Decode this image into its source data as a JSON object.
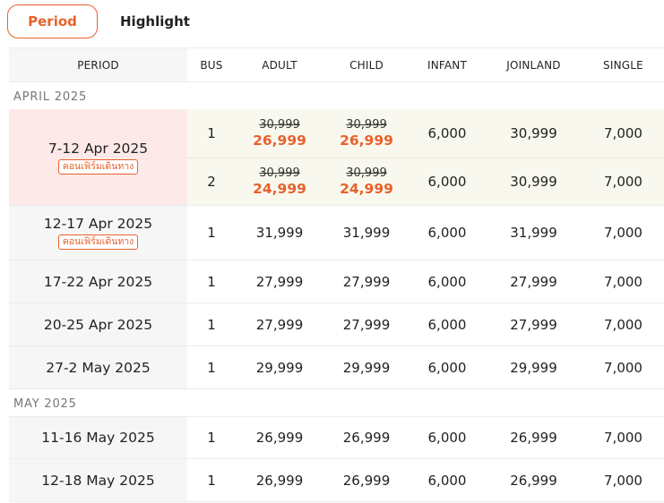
{
  "tabs": {
    "active": "Period",
    "inactive": "Highlight"
  },
  "columns": {
    "period": "PERIOD",
    "bus": "BUS",
    "adult": "ADULT",
    "child": "CHILD",
    "infant": "INFANT",
    "joinland": "JOINLAND",
    "single": "SINGLE"
  },
  "months": [
    {
      "label": "APRIL 2025",
      "rows": [
        {
          "period": "7-12 Apr 2025",
          "badge": "คอนเฟิร์มเดินทาง",
          "buses": [
            {
              "bus": "1",
              "adult_old": "30,999",
              "adult": "26,999",
              "child_old": "30,999",
              "child": "26,999",
              "infant": "6,000",
              "joinland": "30,999",
              "single": "7,000"
            },
            {
              "bus": "2",
              "adult_old": "30,999",
              "adult": "24,999",
              "child_old": "30,999",
              "child": "24,999",
              "infant": "6,000",
              "joinland": "30,999",
              "single": "7,000"
            }
          ]
        },
        {
          "period": "12-17 Apr 2025",
          "badge": "คอนเฟิร์มเดินทาง",
          "bus": "1",
          "adult": "31,999",
          "child": "31,999",
          "infant": "6,000",
          "joinland": "31,999",
          "single": "7,000"
        },
        {
          "period": "17-22 Apr 2025",
          "bus": "1",
          "adult": "27,999",
          "child": "27,999",
          "infant": "6,000",
          "joinland": "27,999",
          "single": "7,000"
        },
        {
          "period": "20-25 Apr 2025",
          "bus": "1",
          "adult": "27,999",
          "child": "27,999",
          "infant": "6,000",
          "joinland": "27,999",
          "single": "7,000"
        },
        {
          "period": "27-2 May 2025",
          "bus": "1",
          "adult": "29,999",
          "child": "29,999",
          "infant": "6,000",
          "joinland": "29,999",
          "single": "7,000"
        }
      ]
    },
    {
      "label": "MAY 2025",
      "rows": [
        {
          "period": "11-16 May 2025",
          "bus": "1",
          "adult": "26,999",
          "child": "26,999",
          "infant": "6,000",
          "joinland": "26,999",
          "single": "7,000"
        },
        {
          "period": "12-18 May 2025",
          "bus": "1",
          "adult": "26,999",
          "child": "26,999",
          "infant": "6,000",
          "joinland": "26,999",
          "single": "7,000"
        }
      ]
    }
  ]
}
